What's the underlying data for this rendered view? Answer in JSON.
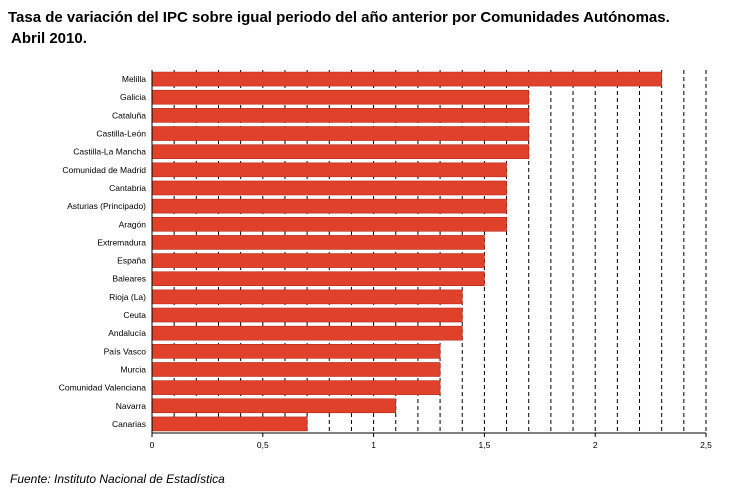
{
  "title_line1": "Tasa de variación del IPC sobre igual periodo del año anterior por Comunidades Autónomas.",
  "title_line2": "Abril 2010.",
  "source": "Fuente: Instituto Nacional de Estadística",
  "chart_data": {
    "type": "bar",
    "orientation": "horizontal",
    "categories": [
      "Melilla",
      "Galicia",
      "Cataluña",
      "Castilla-León",
      "Castilla-La Mancha",
      "Comunidad de Madrid",
      "Cantabria",
      "Asturias (Principado)",
      "Aragón",
      "Extremadura",
      "España",
      "Baleares",
      "Rioja (La)",
      "Ceuta",
      "Andalucía",
      "País Vasco",
      "Murcia",
      "Comunidad Valenciana",
      "Navarra",
      "Canarias"
    ],
    "values": [
      2.3,
      1.7,
      1.7,
      1.7,
      1.7,
      1.6,
      1.6,
      1.6,
      1.6,
      1.5,
      1.5,
      1.5,
      1.4,
      1.4,
      1.4,
      1.3,
      1.3,
      1.3,
      1.1,
      0.7
    ],
    "xlim": [
      0,
      2.5
    ],
    "xticks": [
      0,
      0.5,
      1,
      1.5,
      2,
      2.5
    ],
    "xtick_labels": [
      "0",
      "0,5",
      "1",
      "1,5",
      "2",
      "2,5"
    ],
    "grid": "vertical dashed every 0.1",
    "bar_color": "#e0412b",
    "bar_edge_color": "#b32a18"
  }
}
